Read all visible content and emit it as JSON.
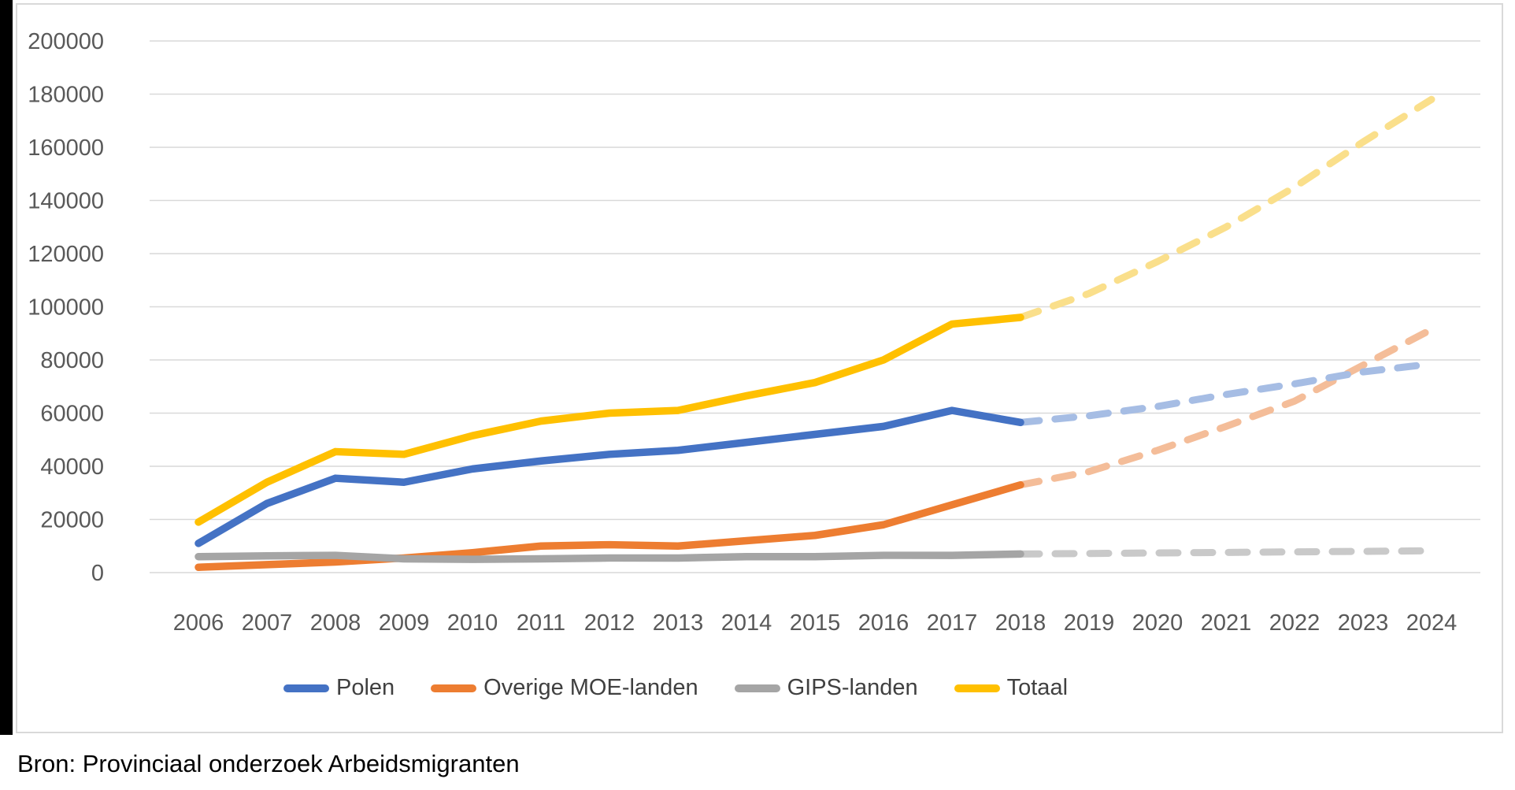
{
  "source_note": "Bron: Provinciaal onderzoek Arbeidsmigranten",
  "chart_data": {
    "type": "line",
    "title": "",
    "xlabel": "",
    "ylabel": "",
    "x": [
      2006,
      2007,
      2008,
      2009,
      2010,
      2011,
      2012,
      2013,
      2014,
      2015,
      2016,
      2017,
      2018,
      2019,
      2020,
      2021,
      2022,
      2023,
      2024
    ],
    "ylim": [
      0,
      200000
    ],
    "ytick_step": 20000,
    "yticks": [
      0,
      20000,
      40000,
      60000,
      80000,
      100000,
      120000,
      140000,
      160000,
      180000,
      200000
    ],
    "grid": true,
    "legend_position": "bottom",
    "forecast_start_year": 2018,
    "forecast_style": "dashed",
    "gridline_color": "#D9D9D9",
    "axis_label_color": "#595959",
    "series": [
      {
        "name": "Polen",
        "color": "#4472C4",
        "forecast_color": "#A6BDE4",
        "values": [
          11000,
          26000,
          35500,
          34000,
          39000,
          42000,
          44500,
          46000,
          49000,
          52000,
          55000,
          61000,
          56500
        ],
        "forecast": [
          56500,
          59000,
          62500,
          67000,
          71000,
          75500,
          78500
        ]
      },
      {
        "name": "Overige MOE-landen",
        "color": "#ED7D31",
        "forecast_color": "#F4BD99",
        "values": [
          2000,
          3000,
          4000,
          5500,
          7500,
          10000,
          10500,
          10000,
          12000,
          14000,
          18000,
          25500,
          33000
        ],
        "forecast": [
          33000,
          38000,
          46000,
          55000,
          64500,
          78000,
          91500
        ]
      },
      {
        "name": "GIPS-landen",
        "color": "#A5A5A5",
        "forecast_color": "#C9C9C9",
        "values": [
          6000,
          6300,
          6500,
          5200,
          5000,
          5200,
          5500,
          5500,
          6000,
          6000,
          6500,
          6500,
          7000
        ],
        "forecast": [
          7000,
          7200,
          7400,
          7600,
          7800,
          8000,
          8200
        ]
      },
      {
        "name": "Totaal",
        "color": "#FFC000",
        "forecast_color": "#FADF8B",
        "values": [
          19000,
          34000,
          45500,
          44500,
          51500,
          57000,
          60000,
          61000,
          66500,
          71500,
          80000,
          93500,
          96000
        ],
        "forecast": [
          96000,
          105000,
          117000,
          130000,
          145000,
          162000,
          178000
        ]
      }
    ]
  },
  "legend": {
    "items": [
      "Polen",
      "Overige MOE-landen",
      "GIPS-landen",
      "Totaal"
    ]
  }
}
